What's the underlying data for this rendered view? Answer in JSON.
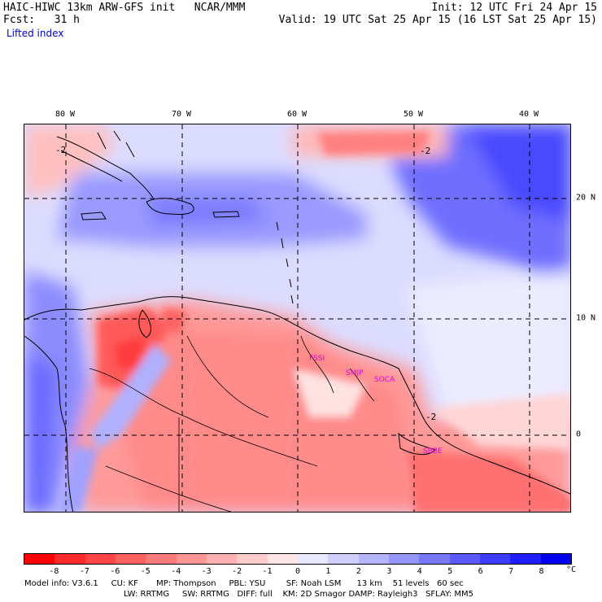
{
  "header": {
    "title": "HAIC-HIWC 13km ARW-GFS init   NCAR/MMM",
    "init": "Init: 12 UTC Fri 24 Apr 15",
    "forecast": "Fcst:   31 h",
    "valid": "Valid: 19 UTC Sat 25 Apr 15 (16 LST Sat 25 Apr 15)",
    "field": "Lifted index"
  },
  "map": {
    "lon_labels": [
      "80 W",
      "70 W",
      "60 W",
      "50 W",
      "40 W"
    ],
    "lat_labels": [
      "20 N",
      "10 N",
      "0"
    ],
    "contour_labels": [
      "-2",
      "-2",
      "-2"
    ],
    "stations": [
      "FSSI",
      "SMJP",
      "SOCA",
      "SBBE"
    ],
    "colors": {
      "grid": "#000000",
      "coast": "#000000",
      "station": "#e000e0"
    }
  },
  "colorbar": {
    "tick_labels": [
      "-8",
      "-7",
      "-6",
      "-5",
      "-4",
      "-3",
      "-2",
      "-1",
      "0",
      "1",
      "2",
      "3",
      "4",
      "5",
      "6",
      "7",
      "8"
    ],
    "unit": "°C",
    "colors": [
      "#ff0000",
      "#ff2a2a",
      "#ff4545",
      "#ff6060",
      "#ff7b7b",
      "#ff9696",
      "#ffb0b0",
      "#ffcccc",
      "#ffe6e6",
      "#e8e8ff",
      "#cfcfff",
      "#b4b4ff",
      "#9696ff",
      "#7878ff",
      "#5a5aff",
      "#3c3cff",
      "#1e1eff",
      "#0000ee"
    ]
  },
  "footer": {
    "line1": "Model info: V3.6.1     CU: KF       MP: Thompson     PBL: YSU        SF: Noah LSM      13 km    51 levels   60 sec",
    "line2": "LW: RRTMG     SW: RRTMG   DIFF: full    KM: 2D Smagor DAMP: Rayleigh3   SFLAY: MM5"
  }
}
